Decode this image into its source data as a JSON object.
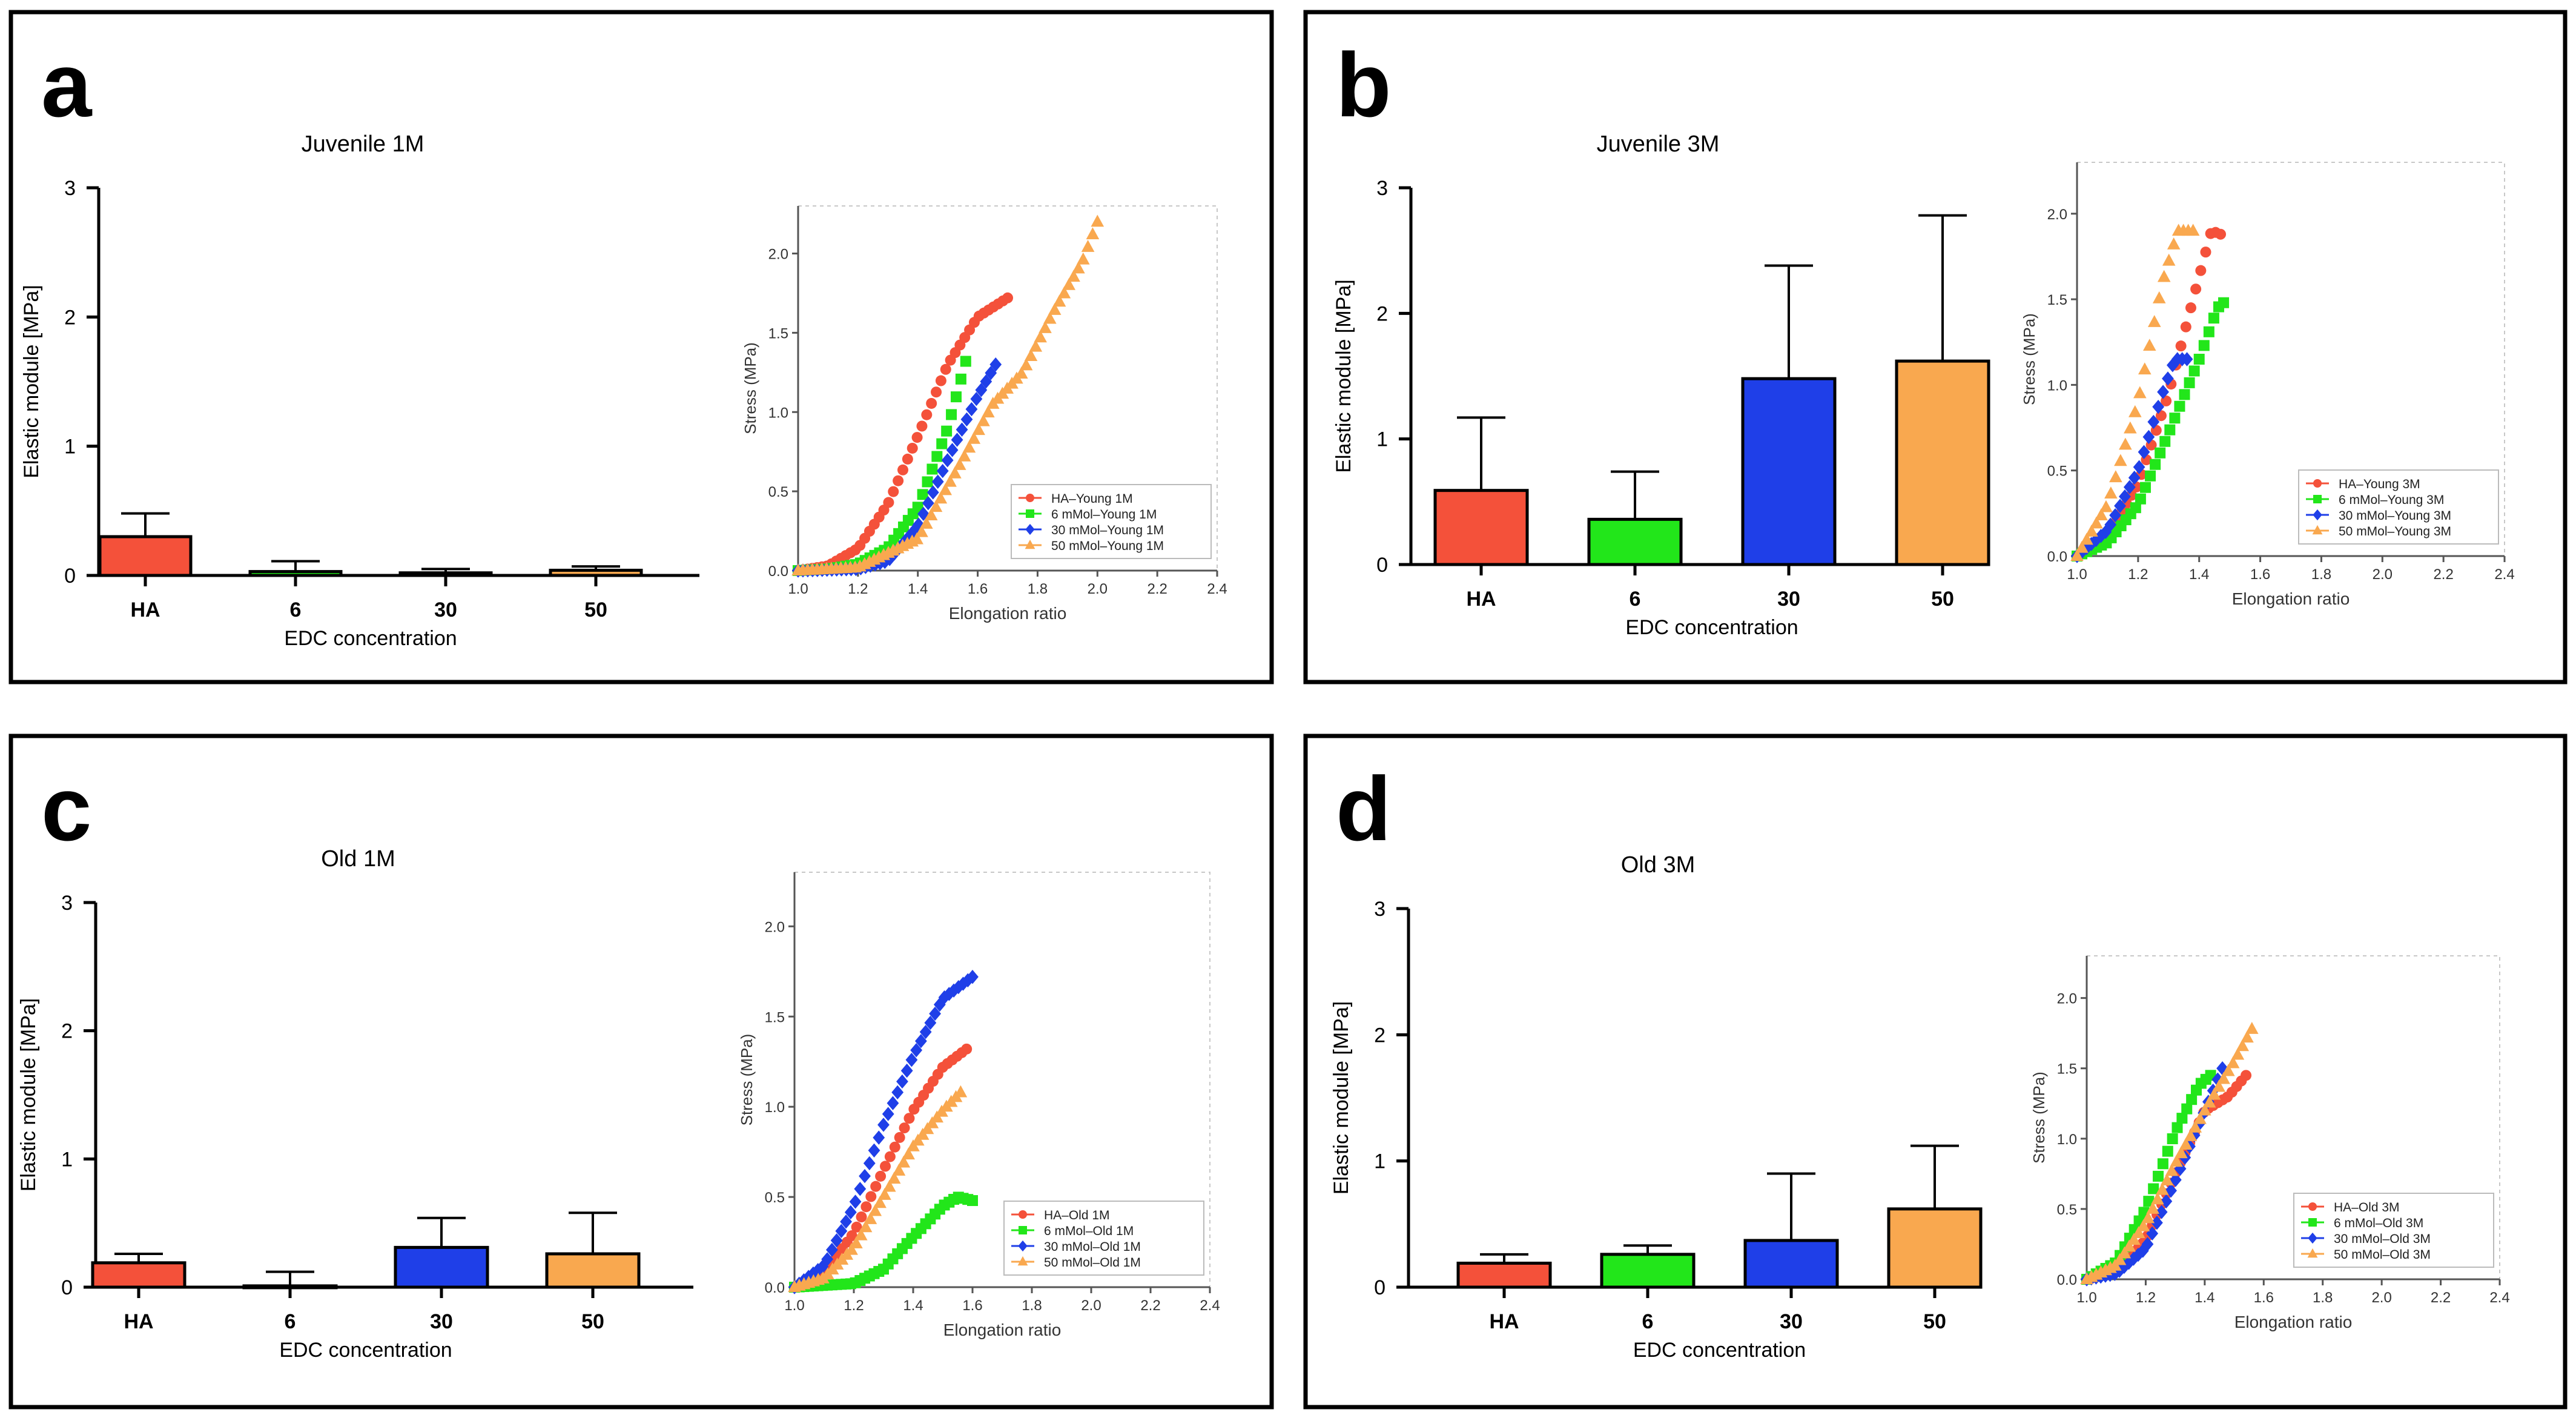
{
  "colors": {
    "HA": "#f4513a",
    "6": "#22e61a",
    "30": "#1f3fe8",
    "50": "#f9a84f"
  },
  "panels": [
    {
      "letter": "a",
      "bar": {
        "title": "Juvenile 1M",
        "xlabel": "EDC concentration",
        "ylabel": "Elastic module [MPa]",
        "ylim": [
          0,
          3
        ],
        "yticks": [
          "0",
          "1",
          "2",
          "3"
        ],
        "categories": [
          "HA",
          "6",
          "30",
          "50"
        ],
        "values": [
          0.3,
          0.03,
          0.02,
          0.04
        ],
        "errors": [
          0.18,
          0.08,
          0.03,
          0.03
        ]
      },
      "line": {
        "xlabel": "Elongation ratio",
        "ylabel": "Stress (MPa)",
        "xlim": [
          1.0,
          2.4
        ],
        "ylim": [
          0,
          2.3
        ],
        "xticks": [
          "1.0",
          "1.2",
          "1.4",
          "1.6",
          "1.8",
          "2.0",
          "2.2",
          "2.4"
        ],
        "yticks": [
          "0.0",
          "0.5",
          "1.0",
          "1.5",
          "2.0"
        ],
        "series": [
          {
            "name": "HA–Young 1M",
            "color": "HA",
            "marker": "circle",
            "points": [
              [
                1.0,
                0
              ],
              [
                1.1,
                0.03
              ],
              [
                1.2,
                0.14
              ],
              [
                1.3,
                0.42
              ],
              [
                1.4,
                0.85
              ],
              [
                1.5,
                1.3
              ],
              [
                1.6,
                1.6
              ],
              [
                1.7,
                1.72
              ]
            ]
          },
          {
            "name": "6 mMol–Young 1M",
            "color": "6",
            "marker": "square",
            "points": [
              [
                1.0,
                0
              ],
              [
                1.1,
                0.01
              ],
              [
                1.2,
                0.04
              ],
              [
                1.3,
                0.14
              ],
              [
                1.4,
                0.4
              ],
              [
                1.5,
                0.9
              ],
              [
                1.56,
                1.32
              ]
            ]
          },
          {
            "name": "30 mMol–Young 1M",
            "color": "30",
            "marker": "diamond",
            "points": [
              [
                1.0,
                0
              ],
              [
                1.2,
                0.01
              ],
              [
                1.3,
                0.06
              ],
              [
                1.4,
                0.28
              ],
              [
                1.5,
                0.7
              ],
              [
                1.6,
                1.1
              ],
              [
                1.66,
                1.3
              ]
            ]
          },
          {
            "name": "50 mMol–Young 1M",
            "color": "50",
            "marker": "triangle",
            "points": [
              [
                1.0,
                0
              ],
              [
                1.2,
                0.02
              ],
              [
                1.4,
                0.2
              ],
              [
                1.55,
                0.7
              ],
              [
                1.65,
                1.05
              ],
              [
                1.75,
                1.25
              ],
              [
                1.85,
                1.62
              ],
              [
                1.95,
                1.95
              ],
              [
                2.0,
                2.2
              ]
            ]
          }
        ]
      }
    },
    {
      "letter": "b",
      "bar": {
        "title": "Juvenile 3M",
        "xlabel": "EDC concentration",
        "ylabel": "Elastic module [MPa]",
        "ylim": [
          0,
          3
        ],
        "yticks": [
          "0",
          "1",
          "2",
          "3"
        ],
        "categories": [
          "HA",
          "6",
          "30",
          "50"
        ],
        "values": [
          0.59,
          0.36,
          1.48,
          1.62
        ],
        "errors": [
          0.58,
          0.38,
          0.9,
          1.16
        ]
      },
      "line": {
        "xlabel": "Elongation ratio",
        "ylabel": "Stress (MPa)",
        "xlim": [
          1.0,
          2.4
        ],
        "ylim": [
          0,
          2.3
        ],
        "xticks": [
          "1.0",
          "1.2",
          "1.4",
          "1.6",
          "1.8",
          "2.0",
          "2.2",
          "2.4"
        ],
        "yticks": [
          "0.0",
          "0.5",
          "1.0",
          "1.5",
          "2.0"
        ],
        "series": [
          {
            "name": "HA–Young 3M",
            "color": "HA",
            "marker": "circle",
            "points": [
              [
                1.0,
                0
              ],
              [
                1.1,
                0.12
              ],
              [
                1.2,
                0.42
              ],
              [
                1.3,
                0.95
              ],
              [
                1.38,
                1.5
              ],
              [
                1.44,
                1.9
              ],
              [
                1.47,
                1.88
              ]
            ]
          },
          {
            "name": "6 mMol–Young 3M",
            "color": "6",
            "marker": "square",
            "points": [
              [
                1.0,
                0
              ],
              [
                1.1,
                0.08
              ],
              [
                1.2,
                0.3
              ],
              [
                1.3,
                0.72
              ],
              [
                1.4,
                1.15
              ],
              [
                1.46,
                1.45
              ],
              [
                1.48,
                1.48
              ]
            ]
          },
          {
            "name": "30 mMol–Young 3M",
            "color": "30",
            "marker": "diamond",
            "points": [
              [
                1.0,
                0
              ],
              [
                1.1,
                0.15
              ],
              [
                1.2,
                0.5
              ],
              [
                1.28,
                0.95
              ],
              [
                1.32,
                1.15
              ],
              [
                1.36,
                1.15
              ]
            ]
          },
          {
            "name": "50 mMol–Young 3M",
            "color": "50",
            "marker": "triangle",
            "points": [
              [
                1.0,
                0
              ],
              [
                1.1,
                0.3
              ],
              [
                1.2,
                0.9
              ],
              [
                1.28,
                1.6
              ],
              [
                1.33,
                1.9
              ],
              [
                1.38,
                1.9
              ]
            ]
          }
        ]
      }
    },
    {
      "letter": "c",
      "bar": {
        "title": "Old 1M",
        "xlabel": "EDC concentration",
        "ylabel": "Elastic module [MPa]",
        "ylim": [
          0,
          3
        ],
        "yticks": [
          "0",
          "1",
          "2",
          "3"
        ],
        "categories": [
          "HA",
          "6",
          "30",
          "50"
        ],
        "values": [
          0.19,
          0.01,
          0.31,
          0.26
        ],
        "errors": [
          0.07,
          0.11,
          0.23,
          0.32
        ]
      },
      "line": {
        "xlabel": "Elongation ratio",
        "ylabel": "Stress (MPa)",
        "xlim": [
          1.0,
          2.4
        ],
        "ylim": [
          0,
          2.3
        ],
        "xticks": [
          "1.0",
          "1.2",
          "1.4",
          "1.6",
          "1.8",
          "2.0",
          "2.2",
          "2.4"
        ],
        "yticks": [
          "0.0",
          "0.5",
          "1.0",
          "1.5",
          "2.0"
        ],
        "series": [
          {
            "name": "HA–Old 1M",
            "color": "HA",
            "marker": "circle",
            "points": [
              [
                1.0,
                0
              ],
              [
                1.1,
                0.08
              ],
              [
                1.2,
                0.3
              ],
              [
                1.3,
                0.65
              ],
              [
                1.4,
                0.98
              ],
              [
                1.5,
                1.22
              ],
              [
                1.58,
                1.32
              ]
            ]
          },
          {
            "name": "6 mMol–Old 1M",
            "color": "6",
            "marker": "square",
            "points": [
              [
                1.0,
                0
              ],
              [
                1.2,
                0.02
              ],
              [
                1.3,
                0.1
              ],
              [
                1.4,
                0.28
              ],
              [
                1.5,
                0.45
              ],
              [
                1.55,
                0.5
              ],
              [
                1.6,
                0.48
              ]
            ]
          },
          {
            "name": "30 mMol–Old 1M",
            "color": "30",
            "marker": "diamond",
            "points": [
              [
                1.0,
                0
              ],
              [
                1.1,
                0.12
              ],
              [
                1.2,
                0.45
              ],
              [
                1.3,
                0.9
              ],
              [
                1.4,
                1.28
              ],
              [
                1.5,
                1.6
              ],
              [
                1.6,
                1.72
              ]
            ]
          },
          {
            "name": "50 mMol–Old 1M",
            "color": "50",
            "marker": "triangle",
            "points": [
              [
                1.0,
                0
              ],
              [
                1.1,
                0.05
              ],
              [
                1.2,
                0.22
              ],
              [
                1.3,
                0.5
              ],
              [
                1.4,
                0.78
              ],
              [
                1.5,
                0.98
              ],
              [
                1.56,
                1.08
              ]
            ]
          }
        ]
      }
    },
    {
      "letter": "d",
      "bar": {
        "title": "Old 3M",
        "xlabel": "EDC concentration",
        "ylabel": "Elastic module [MPa]",
        "ylim": [
          0,
          3
        ],
        "yticks": [
          "0",
          "1",
          "2",
          "3"
        ],
        "categories": [
          "HA",
          "6",
          "30",
          "50"
        ],
        "values": [
          0.19,
          0.26,
          0.37,
          0.62
        ],
        "errors": [
          0.07,
          0.07,
          0.53,
          0.5
        ]
      },
      "line": {
        "xlabel": "Elongation ratio",
        "ylabel": "Stress (MPa)",
        "xlim": [
          1.0,
          2.4
        ],
        "ylim": [
          0,
          2.3
        ],
        "xticks": [
          "1.0",
          "1.2",
          "1.4",
          "1.6",
          "1.8",
          "2.0",
          "2.2",
          "2.4"
        ],
        "yticks": [
          "0.0",
          "0.5",
          "1.0",
          "1.5",
          "2.0"
        ],
        "series": [
          {
            "name": "HA–Old 3M",
            "color": "HA",
            "marker": "circle",
            "points": [
              [
                1.0,
                0
              ],
              [
                1.1,
                0.05
              ],
              [
                1.2,
                0.28
              ],
              [
                1.3,
                0.75
              ],
              [
                1.4,
                1.2
              ],
              [
                1.48,
                1.3
              ],
              [
                1.54,
                1.45
              ]
            ]
          },
          {
            "name": "6 mMol–Old 3M",
            "color": "6",
            "marker": "square",
            "points": [
              [
                1.0,
                0
              ],
              [
                1.1,
                0.12
              ],
              [
                1.2,
                0.5
              ],
              [
                1.3,
                1.05
              ],
              [
                1.38,
                1.38
              ],
              [
                1.42,
                1.45
              ]
            ]
          },
          {
            "name": "30 mMol–Old 3M",
            "color": "30",
            "marker": "diamond",
            "points": [
              [
                1.0,
                0
              ],
              [
                1.1,
                0.04
              ],
              [
                1.2,
                0.22
              ],
              [
                1.3,
                0.7
              ],
              [
                1.4,
                1.2
              ],
              [
                1.46,
                1.5
              ]
            ]
          },
          {
            "name": "50 mMol–Old 3M",
            "color": "50",
            "marker": "triangle",
            "points": [
              [
                1.0,
                0
              ],
              [
                1.1,
                0.1
              ],
              [
                1.2,
                0.4
              ],
              [
                1.3,
                0.82
              ],
              [
                1.4,
                1.2
              ],
              [
                1.5,
                1.55
              ],
              [
                1.56,
                1.78
              ]
            ]
          }
        ]
      }
    }
  ],
  "chart_data": [
    {
      "type": "bar",
      "title": "Juvenile 1M",
      "xlabel": "EDC concentration",
      "ylabel": "Elastic module [MPa]",
      "ylim": [
        0,
        3
      ],
      "categories": [
        "HA",
        "6",
        "30",
        "50"
      ],
      "values": [
        0.3,
        0.03,
        0.02,
        0.04
      ],
      "errors": [
        0.18,
        0.08,
        0.03,
        0.03
      ]
    },
    {
      "type": "scatter",
      "xlabel": "Elongation ratio",
      "ylabel": "Stress (MPa)",
      "xlim": [
        1.0,
        2.4
      ],
      "ylim": [
        0,
        2.3
      ],
      "series": [
        {
          "name": "HA–Young 1M"
        },
        {
          "name": "6 mMol–Young 1M"
        },
        {
          "name": "30 mMol–Young 1M"
        },
        {
          "name": "50 mMol–Young 1M"
        }
      ]
    },
    {
      "type": "bar",
      "title": "Juvenile 3M",
      "xlabel": "EDC concentration",
      "ylabel": "Elastic module [MPa]",
      "ylim": [
        0,
        3
      ],
      "categories": [
        "HA",
        "6",
        "30",
        "50"
      ],
      "values": [
        0.59,
        0.36,
        1.48,
        1.62
      ],
      "errors": [
        0.58,
        0.38,
        0.9,
        1.16
      ]
    },
    {
      "type": "scatter",
      "xlabel": "Elongation ratio",
      "ylabel": "Stress (MPa)",
      "xlim": [
        1.0,
        2.4
      ],
      "ylim": [
        0,
        2.3
      ],
      "series": [
        {
          "name": "HA–Young 3M"
        },
        {
          "name": "6 mMol–Young 3M"
        },
        {
          "name": "30 mMol–Young 3M"
        },
        {
          "name": "50 mMol–Young 3M"
        }
      ]
    },
    {
      "type": "bar",
      "title": "Old 1M",
      "xlabel": "EDC concentration",
      "ylabel": "Elastic module [MPa]",
      "ylim": [
        0,
        3
      ],
      "categories": [
        "HA",
        "6",
        "30",
        "50"
      ],
      "values": [
        0.19,
        0.01,
        0.31,
        0.26
      ],
      "errors": [
        0.07,
        0.11,
        0.23,
        0.32
      ]
    },
    {
      "type": "scatter",
      "xlabel": "Elongation ratio",
      "ylabel": "Stress (MPa)",
      "xlim": [
        1.0,
        2.4
      ],
      "ylim": [
        0,
        2.3
      ],
      "series": [
        {
          "name": "HA–Old 1M"
        },
        {
          "name": "6 mMol–Old 1M"
        },
        {
          "name": "30 mMol–Old 1M"
        },
        {
          "name": "50 mMol–Old 1M"
        }
      ]
    },
    {
      "type": "bar",
      "title": "Old 3M",
      "xlabel": "EDC concentration",
      "ylabel": "Elastic module [MPa]",
      "ylim": [
        0,
        3
      ],
      "categories": [
        "HA",
        "6",
        "30",
        "50"
      ],
      "values": [
        0.19,
        0.26,
        0.37,
        0.62
      ],
      "errors": [
        0.07,
        0.07,
        0.53,
        0.5
      ]
    },
    {
      "type": "scatter",
      "xlabel": "Elongation ratio",
      "ylabel": "Stress (MPa)",
      "xlim": [
        1.0,
        2.4
      ],
      "ylim": [
        0,
        2.3
      ],
      "series": [
        {
          "name": "HA–Old 3M"
        },
        {
          "name": "6 mMol–Old 3M"
        },
        {
          "name": "30 mMol–Old 3M"
        },
        {
          "name": "50 mMol–Old 3M"
        }
      ]
    }
  ]
}
